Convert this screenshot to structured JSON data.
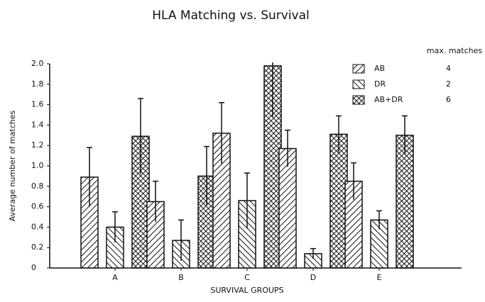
{
  "chart_data": {
    "type": "bar",
    "title": "HLA Matching  vs. Survival",
    "x_label": "SURVIVAL GROUPS",
    "y_label": "Average number of matches",
    "categories": [
      "A",
      "B",
      "C",
      "D",
      "E"
    ],
    "legend_title": "max. matches",
    "series": [
      {
        "name": "AB",
        "color": "#111111",
        "hatch": "/",
        "max_matches": 4,
        "values": [
          0.89,
          0.65,
          1.32,
          1.17,
          0.85
        ],
        "errors": [
          0.29,
          0.2,
          0.3,
          0.18,
          0.18
        ]
      },
      {
        "name": "DR",
        "color": "#111111",
        "hatch": "\\",
        "max_matches": 2,
        "values": [
          0.4,
          0.27,
          0.66,
          0.14,
          0.47
        ],
        "errors": [
          0.15,
          0.2,
          0.27,
          0.05,
          0.09
        ]
      },
      {
        "name": "AB+DR",
        "color": "#111111",
        "hatch": "x",
        "max_matches": 6,
        "values": [
          1.29,
          0.9,
          1.98,
          1.31,
          1.3
        ],
        "errors": [
          0.37,
          0.29,
          0.5,
          0.18,
          0.19
        ]
      }
    ],
    "ylim": [
      0,
      2.0
    ],
    "yticks": [
      0,
      0.2,
      0.4,
      0.6,
      0.8,
      {
        "value": 1.0,
        "label": "1.0"
      },
      1.2,
      1.4,
      1.6,
      1.8,
      {
        "value": 2.0,
        "label": "2.0"
      }
    ],
    "legend": "top-right"
  }
}
